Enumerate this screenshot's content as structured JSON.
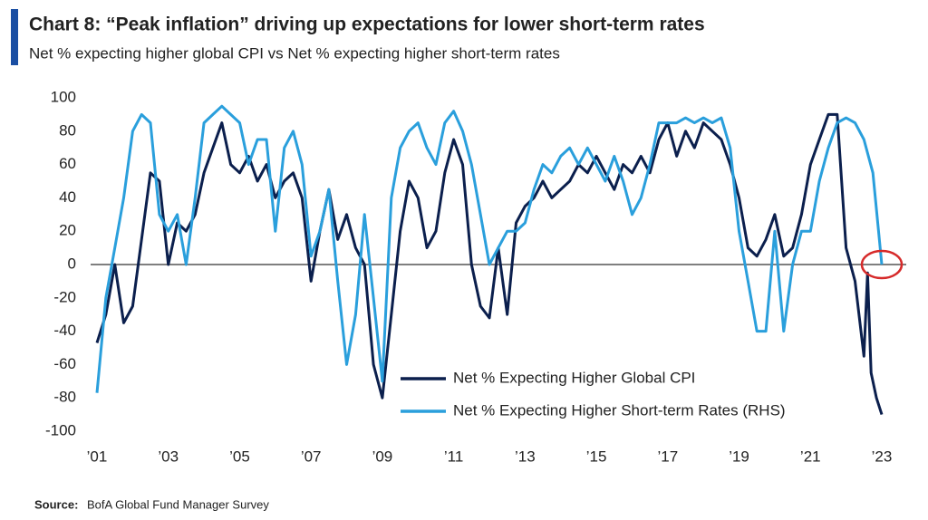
{
  "chart_data": {
    "type": "line",
    "title": "Chart 8: “Peak inflation” driving up expectations for lower short-term rates",
    "subtitle": "Net % expecting higher global CPI vs Net % expecting higher short-term rates",
    "source_label": "Source:",
    "source": "BofA Global Fund Manager Survey",
    "xlim": [
      2000.8,
      2023.6
    ],
    "xticks": [
      {
        "value": 2001,
        "label": "’01"
      },
      {
        "value": 2003,
        "label": "’03"
      },
      {
        "value": 2005,
        "label": "’05"
      },
      {
        "value": 2007,
        "label": "’07"
      },
      {
        "value": 2009,
        "label": "’09"
      },
      {
        "value": 2011,
        "label": "’11"
      },
      {
        "value": 2013,
        "label": "’13"
      },
      {
        "value": 2015,
        "label": "’15"
      },
      {
        "value": 2017,
        "label": "’17"
      },
      {
        "value": 2019,
        "label": "’19"
      },
      {
        "value": 2021,
        "label": "’21"
      },
      {
        "value": 2023,
        "label": "’23"
      }
    ],
    "ylim": [
      -100,
      100
    ],
    "yticks": [
      100,
      80,
      60,
      40,
      20,
      0,
      -20,
      -40,
      -60,
      -80,
      -100
    ],
    "legend": "lower-right",
    "series": [
      {
        "name": "Net % Expecting Higher Global CPI",
        "color": "#0b1f4d",
        "x": [
          2001.0,
          2001.25,
          2001.5,
          2001.75,
          2002.0,
          2002.25,
          2002.5,
          2002.75,
          2003.0,
          2003.25,
          2003.5,
          2003.75,
          2004.0,
          2004.25,
          2004.5,
          2004.75,
          2005.0,
          2005.25,
          2005.5,
          2005.75,
          2006.0,
          2006.25,
          2006.5,
          2006.75,
          2007.0,
          2007.25,
          2007.5,
          2007.75,
          2008.0,
          2008.25,
          2008.5,
          2008.75,
          2009.0,
          2009.25,
          2009.5,
          2009.75,
          2010.0,
          2010.25,
          2010.5,
          2010.75,
          2011.0,
          2011.25,
          2011.5,
          2011.75,
          2012.0,
          2012.25,
          2012.5,
          2012.75,
          2013.0,
          2013.25,
          2013.5,
          2013.75,
          2014.0,
          2014.25,
          2014.5,
          2014.75,
          2015.0,
          2015.25,
          2015.5,
          2015.75,
          2016.0,
          2016.25,
          2016.5,
          2016.75,
          2017.0,
          2017.25,
          2017.5,
          2017.75,
          2018.0,
          2018.25,
          2018.5,
          2018.75,
          2019.0,
          2019.25,
          2019.5,
          2019.75,
          2020.0,
          2020.25,
          2020.5,
          2020.75,
          2021.0,
          2021.25,
          2021.5,
          2021.75,
          2022.0,
          2022.25,
          2022.5,
          2022.6,
          2022.7,
          2022.85,
          2023.0
        ],
        "values": [
          -47,
          -30,
          0,
          -35,
          -25,
          15,
          55,
          50,
          0,
          25,
          20,
          30,
          55,
          70,
          85,
          60,
          55,
          65,
          50,
          60,
          40,
          50,
          55,
          40,
          -10,
          20,
          45,
          15,
          30,
          10,
          0,
          -60,
          -80,
          -30,
          20,
          50,
          40,
          10,
          20,
          55,
          75,
          60,
          0,
          -25,
          -32,
          10,
          -30,
          25,
          35,
          40,
          50,
          40,
          45,
          50,
          60,
          55,
          65,
          55,
          45,
          60,
          55,
          65,
          55,
          75,
          85,
          65,
          80,
          70,
          85,
          80,
          75,
          60,
          40,
          10,
          5,
          15,
          30,
          5,
          10,
          30,
          60,
          75,
          90,
          90,
          10,
          -10,
          -55,
          -5,
          -65,
          -80,
          -90
        ]
      },
      {
        "name": "Net % Expecting Higher Short-term Rates (RHS)",
        "color": "#2a9fdc",
        "x": [
          2001.0,
          2001.25,
          2001.5,
          2001.75,
          2002.0,
          2002.25,
          2002.5,
          2002.75,
          2003.0,
          2003.25,
          2003.5,
          2003.75,
          2004.0,
          2004.25,
          2004.5,
          2004.75,
          2005.0,
          2005.25,
          2005.5,
          2005.75,
          2006.0,
          2006.25,
          2006.5,
          2006.75,
          2007.0,
          2007.25,
          2007.5,
          2007.75,
          2008.0,
          2008.25,
          2008.5,
          2008.75,
          2009.0,
          2009.25,
          2009.5,
          2009.75,
          2010.0,
          2010.25,
          2010.5,
          2010.75,
          2011.0,
          2011.25,
          2011.5,
          2011.75,
          2012.0,
          2012.25,
          2012.5,
          2012.75,
          2013.0,
          2013.25,
          2013.5,
          2013.75,
          2014.0,
          2014.25,
          2014.5,
          2014.75,
          2015.0,
          2015.25,
          2015.5,
          2015.75,
          2016.0,
          2016.25,
          2016.5,
          2016.75,
          2017.0,
          2017.25,
          2017.5,
          2017.75,
          2018.0,
          2018.25,
          2018.5,
          2018.75,
          2019.0,
          2019.25,
          2019.5,
          2019.75,
          2020.0,
          2020.25,
          2020.5,
          2020.75,
          2021.0,
          2021.25,
          2021.5,
          2021.75,
          2022.0,
          2022.25,
          2022.5,
          2022.75,
          2023.0
        ],
        "values": [
          -77,
          -20,
          10,
          40,
          80,
          90,
          85,
          30,
          20,
          30,
          0,
          40,
          85,
          90,
          95,
          90,
          85,
          60,
          75,
          75,
          20,
          70,
          80,
          60,
          5,
          20,
          45,
          -10,
          -60,
          -30,
          30,
          -20,
          -70,
          40,
          70,
          80,
          85,
          70,
          60,
          85,
          92,
          80,
          60,
          30,
          0,
          10,
          20,
          20,
          25,
          45,
          60,
          55,
          65,
          70,
          60,
          70,
          60,
          50,
          65,
          50,
          30,
          40,
          60,
          85,
          85,
          85,
          88,
          85,
          88,
          85,
          88,
          70,
          20,
          -10,
          -40,
          -40,
          20,
          -40,
          0,
          20,
          20,
          50,
          70,
          85,
          88,
          85,
          75,
          55,
          0
        ]
      }
    ]
  }
}
